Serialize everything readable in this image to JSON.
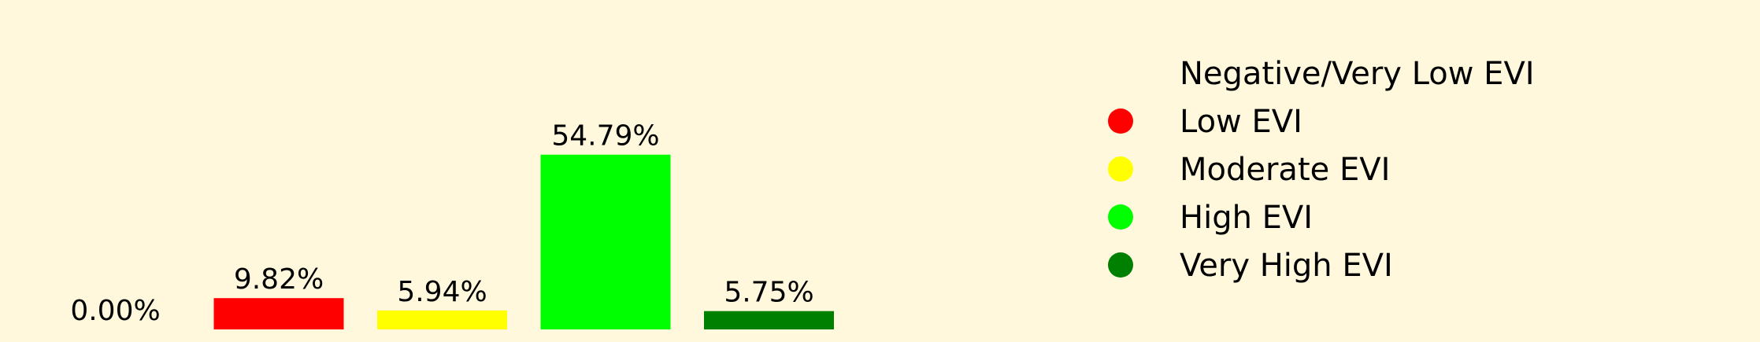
{
  "chart_data": {
    "type": "bar",
    "categories": [
      "Negative/Very Low EVI",
      "Low EVI",
      "Moderate EVI",
      "High EVI",
      "Very High EVI"
    ],
    "values": [
      0.0,
      9.82,
      5.94,
      54.79,
      5.75
    ],
    "value_labels": [
      "0.00%",
      "9.82%",
      "5.94%",
      "54.79%",
      "5.75%"
    ],
    "colors": [
      "#FFF8DC",
      "#FF0000",
      "#FFFF00",
      "#00FF00",
      "#008000"
    ],
    "ylim": [
      0,
      60
    ],
    "grid": false,
    "legend_position": "right",
    "legend": [
      {
        "label": "Negative/Very Low EVI",
        "color": "#FFF8DC"
      },
      {
        "label": "Low EVI",
        "color": "#FF0000"
      },
      {
        "label": "Moderate EVI",
        "color": "#FFFF00"
      },
      {
        "label": "High EVI",
        "color": "#00FF00"
      },
      {
        "label": "Very High EVI",
        "color": "#008000"
      }
    ]
  }
}
